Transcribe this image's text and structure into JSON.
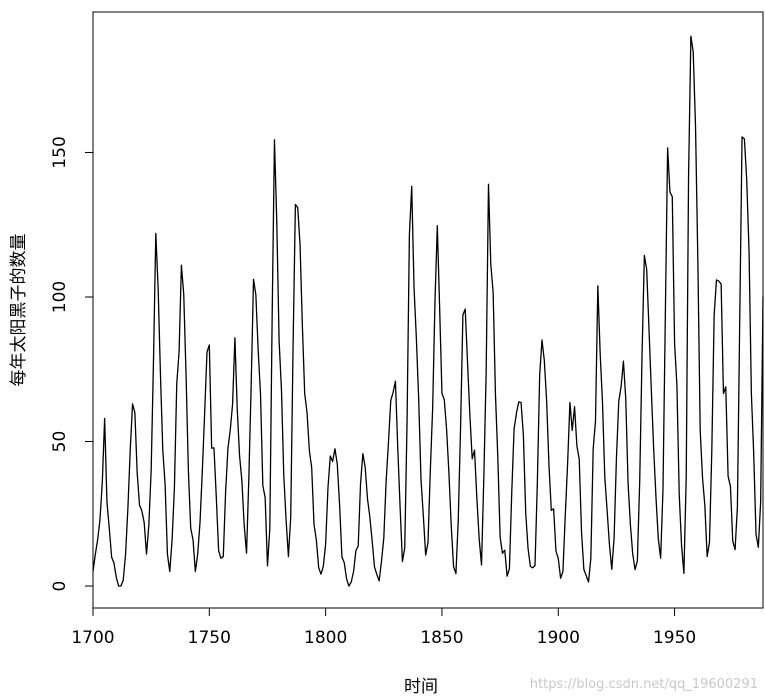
{
  "chart_data": {
    "type": "line",
    "title": "",
    "xlabel": "时间",
    "ylabel": "每年太阳黑子的数量",
    "xlim": [
      1700,
      1988
    ],
    "ylim": [
      -7.6,
      198.6
    ],
    "x_ticks": [
      1700,
      1750,
      1800,
      1850,
      1900,
      1950
    ],
    "y_ticks": [
      0,
      50,
      100,
      150
    ],
    "grid": false,
    "legend": "none",
    "line_color": "#000000",
    "series": [
      {
        "x_start": 1700,
        "x_step": 1,
        "values": [
          5,
          11,
          16,
          23,
          36,
          58,
          29,
          20,
          10,
          8,
          3,
          0,
          0,
          2,
          11,
          27,
          47,
          63,
          60,
          39,
          28,
          26,
          22,
          11,
          21,
          40,
          78,
          122,
          103,
          73,
          47,
          35,
          11,
          5,
          16,
          34,
          70,
          81,
          111,
          101,
          73,
          40,
          20,
          16,
          5,
          11,
          22,
          40,
          60,
          80.9,
          83.4,
          47.7,
          47.8,
          30.7,
          12.2,
          9.6,
          10.2,
          32.4,
          47.6,
          54,
          62.9,
          85.9,
          61.2,
          45.1,
          36.4,
          20.9,
          11.4,
          37.8,
          69.8,
          106.1,
          100.8,
          81.6,
          66.5,
          34.8,
          30.6,
          7,
          19.8,
          92.5,
          154.4,
          125.9,
          84.8,
          68.1,
          38.5,
          22.8,
          10.2,
          24.1,
          82.9,
          132,
          130.9,
          118.1,
          89.9,
          66.6,
          60,
          46.9,
          41,
          21.3,
          16,
          6.4,
          4.1,
          6.8,
          14.5,
          34,
          45,
          43.1,
          47.5,
          42.2,
          28.1,
          10.1,
          8.1,
          2.5,
          0,
          1.4,
          5,
          12.2,
          13.9,
          35.4,
          45.8,
          41.1,
          30.1,
          23.9,
          15.6,
          6.6,
          4,
          1.8,
          8.5,
          16.6,
          36.3,
          49.6,
          64.2,
          67,
          70.9,
          47.8,
          27.5,
          8.5,
          13.2,
          56.9,
          121.5,
          138.3,
          103.2,
          85.7,
          64.6,
          36.7,
          24.2,
          10.7,
          15,
          40.1,
          61.5,
          98.5,
          124.7,
          96.3,
          66.6,
          64.5,
          54.1,
          39,
          20.6,
          6.7,
          4.3,
          22.7,
          54.8,
          93.8,
          95.8,
          77.2,
          59.1,
          44,
          47,
          30.5,
          16.3,
          7.3,
          37.6,
          74,
          139,
          111.2,
          101.6,
          66.2,
          44.7,
          17,
          11.3,
          12.4,
          3.4,
          6,
          32.3,
          54.3,
          59.7,
          63.7,
          63.5,
          52.2,
          25.4,
          13.1,
          6.8,
          6.3,
          7.1,
          35.6,
          73,
          85.1,
          78,
          64,
          41.8,
          26.2,
          26.7,
          12.1,
          9.5,
          2.7,
          5,
          24.4,
          42,
          63.5,
          53.8,
          62,
          48.5,
          43.9,
          18.6,
          5.7,
          3.6,
          1.4,
          9.6,
          47.4,
          57.1,
          103.9,
          80.6,
          63.6,
          37.6,
          26.1,
          14.2,
          5.8,
          16.7,
          44.3,
          63.9,
          69,
          77.8,
          64.9,
          35.7,
          21.2,
          11.1,
          5.7,
          8.7,
          36.1,
          79.7,
          114.4,
          109.6,
          88.8,
          67.8,
          47.5,
          30.6,
          16.3,
          9.6,
          33.2,
          92.6,
          151.6,
          136.3,
          134.7,
          83.9,
          69.4,
          31.5,
          13.9,
          4.4,
          38,
          141.7,
          190.2,
          184.8,
          159,
          112.3,
          53.9,
          37.5,
          27.9,
          10.2,
          15.1,
          47,
          93.8,
          105.9,
          105.5,
          104.5,
          66.6,
          68.9,
          38,
          34.5,
          15.5,
          12.6,
          27.5,
          92.5,
          155.4,
          154.7,
          140.5,
          115.9,
          66.6,
          45.9,
          17.9,
          13.4,
          29.2,
          100.2
        ]
      }
    ]
  },
  "watermark": "https://blog.csdn.net/qq_19600291"
}
